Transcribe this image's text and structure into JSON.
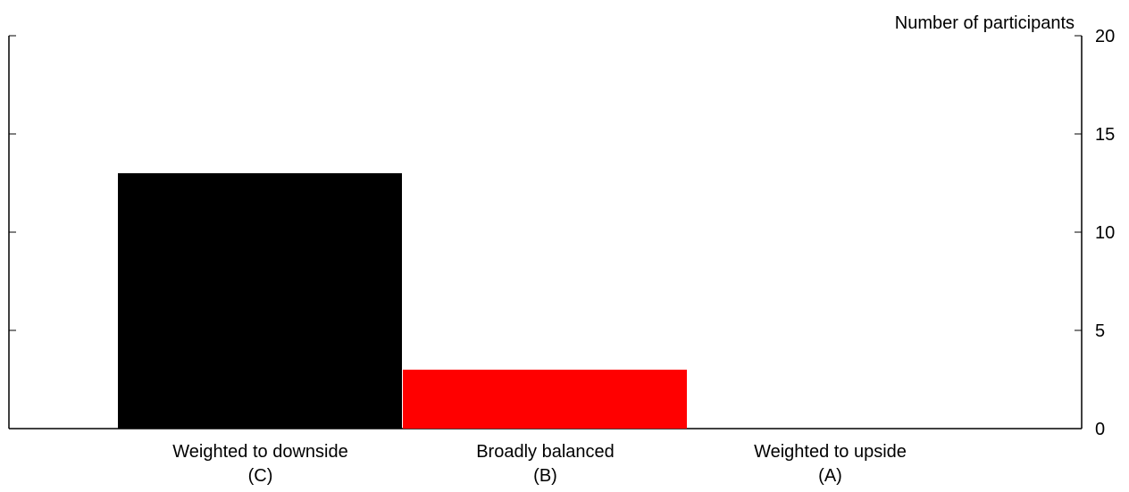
{
  "chart_data": {
    "type": "bar",
    "title": "",
    "xlabel": "",
    "ylabel": "Number of participants",
    "ylim": [
      0,
      20
    ],
    "yticks": [
      0,
      5,
      10,
      15,
      20
    ],
    "y_axis_position": "right",
    "grid": false,
    "legend": "none",
    "categories": [
      [
        "Weighted to downside",
        "(C)"
      ],
      [
        "Broadly balanced",
        "(B)"
      ],
      [
        "Weighted to upside",
        "(A)"
      ]
    ],
    "values": [
      13,
      3,
      0
    ],
    "colors": [
      "#000000",
      "#ff0000",
      "#000000"
    ]
  }
}
